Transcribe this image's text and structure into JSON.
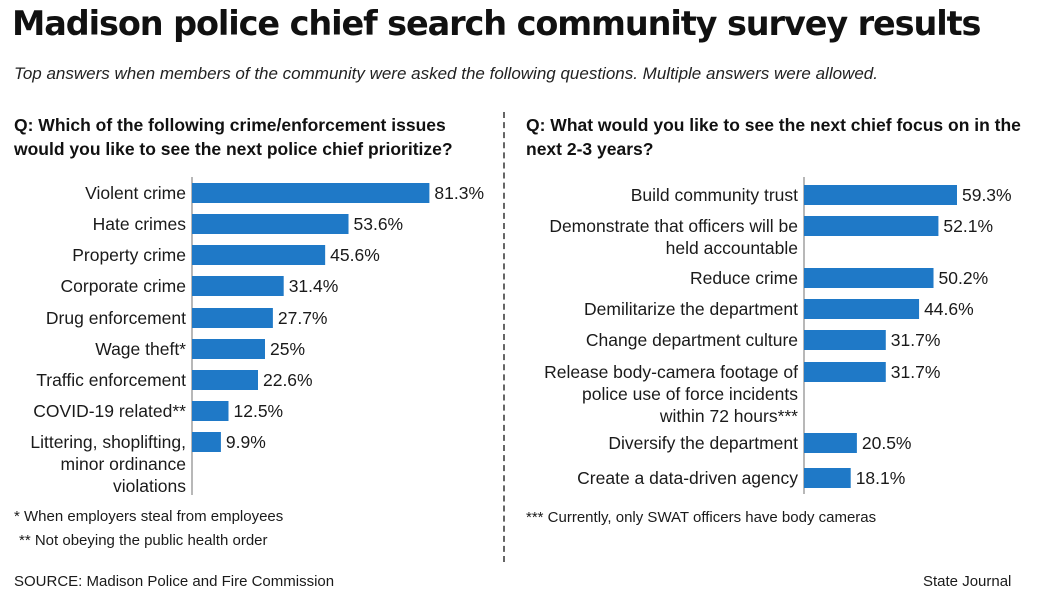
{
  "header": {
    "title": "Madison police chief search community survey results",
    "subtitle": "Top answers when members of the community were asked the following questions. Multiple answers were allowed."
  },
  "colors": {
    "bar": "#1f79c7",
    "axis": "#888888",
    "text": "#1a1a1a"
  },
  "chart_data": [
    {
      "type": "bar",
      "orientation": "horizontal",
      "title": "Q: Which of the following crime/enforcement issues would you like to see the next police chief prioritize?",
      "categories": [
        "Violent crime",
        "Hate crimes",
        "Property crime",
        "Corporate crime",
        "Drug enforcement",
        "Wage theft*",
        "Traffic enforcement",
        "COVID-19 related**",
        "Littering, shoplifting, minor ordinance violations"
      ],
      "category_lines": [
        [
          "Violent crime"
        ],
        [
          "Hate crimes"
        ],
        [
          "Property crime"
        ],
        [
          "Corporate crime"
        ],
        [
          "Drug enforcement"
        ],
        [
          "Wage theft*"
        ],
        [
          "Traffic enforcement"
        ],
        [
          "COVID-19 related**"
        ],
        [
          "Littering, shoplifting,",
          "minor ordinance",
          "violations"
        ]
      ],
      "values": [
        81.3,
        53.6,
        45.6,
        31.4,
        27.7,
        25,
        22.6,
        12.5,
        9.9
      ],
      "value_labels": [
        "81.3%",
        "53.6%",
        "45.6%",
        "31.4%",
        "27.7%",
        "25%",
        "22.6%",
        "12.5%",
        "9.9%"
      ],
      "unit": "%",
      "footnotes": [
        "* When employers steal from employees",
        "** Not obeying the public health order"
      ]
    },
    {
      "type": "bar",
      "orientation": "horizontal",
      "title": "Q: What would you like to see the next chief focus on in the next 2-3 years?",
      "categories": [
        "Build community trust",
        "Demonstrate that officers will be held accountable",
        "Reduce crime",
        "Demilitarize the department",
        "Change department culture",
        "Release body-camera footage of police use of force incidents within 72 hours***",
        "Diversify the department",
        "Create a data-driven agency"
      ],
      "category_lines": [
        [
          "Build community trust"
        ],
        [
          "Demonstrate that officers will be",
          "held accountable"
        ],
        [
          "Reduce crime"
        ],
        [
          "Demilitarize the department"
        ],
        [
          "Change department culture"
        ],
        [
          "Release body-camera footage of",
          "police use of force incidents",
          "within 72 hours***"
        ],
        [
          "Diversify the department"
        ],
        [
          "Create a data-driven agency"
        ]
      ],
      "values": [
        59.3,
        52.1,
        50.2,
        44.6,
        31.7,
        31.7,
        20.5,
        18.1
      ],
      "value_labels": [
        "59.3%",
        "52.1%",
        "50.2%",
        "44.6%",
        "31.7%",
        "31.7%",
        "20.5%",
        "18.1%"
      ],
      "unit": "%",
      "footnotes": [
        "*** Currently, only SWAT officers have body cameras"
      ]
    }
  ],
  "footer": {
    "source": "SOURCE: Madison Police and Fire Commission",
    "credit": "State Journal"
  }
}
